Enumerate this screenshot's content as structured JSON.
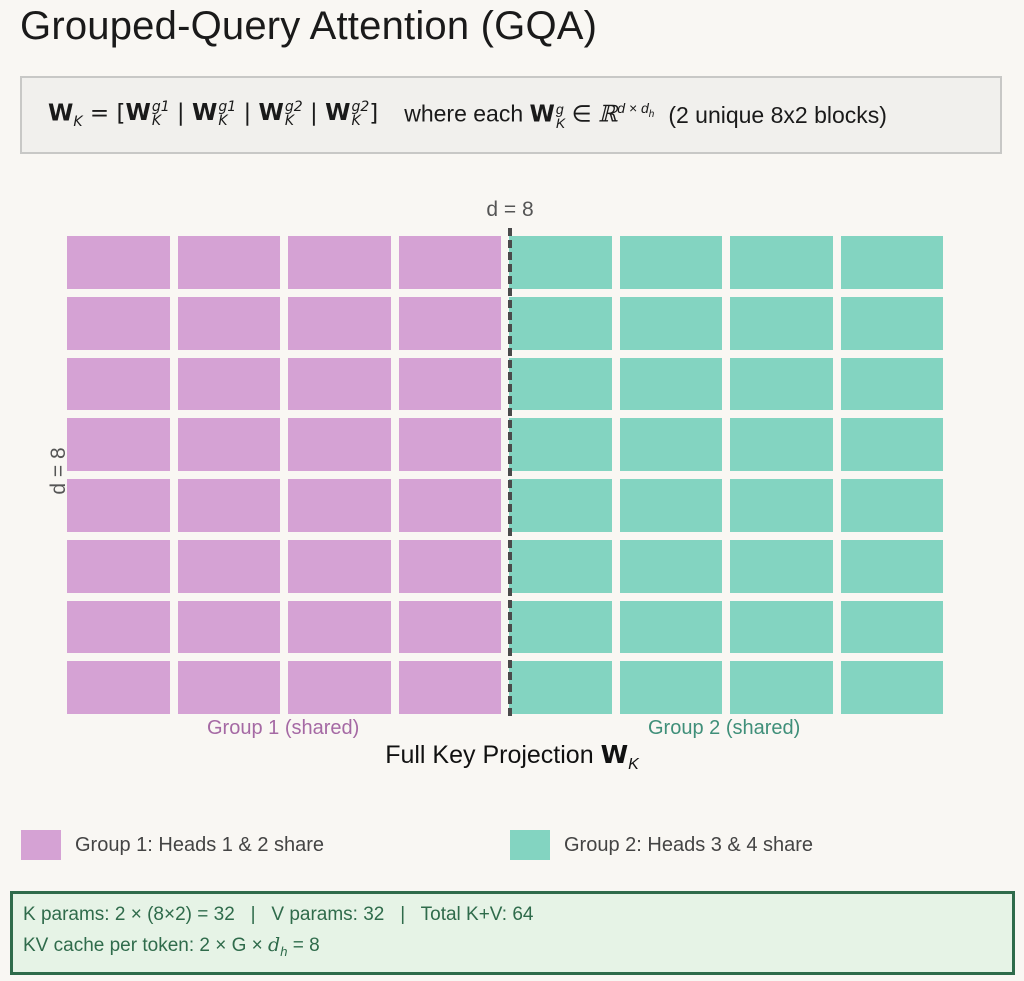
{
  "title": "Grouped-Query Attention (GQA)",
  "formula": {
    "lhs": "W",
    "lhs_sub": "K",
    "equals": " = [",
    "terms": [
      {
        "sup": "g1",
        "sub": "K"
      },
      {
        "sup": "g1",
        "sub": "K"
      },
      {
        "sup": "g2",
        "sub": "K"
      },
      {
        "sup": "g2",
        "sub": "K"
      }
    ],
    "separator": " | ",
    "close": "]",
    "where_text": "where each",
    "where_sup": "g",
    "where_sub": "K",
    "in_symbol": " ∈ ",
    "set_symbol": "ℝ",
    "set_exponent": "d × d",
    "set_exponent_sub": "h",
    "note": "(2 unique 8x2 blocks)"
  },
  "matrix": {
    "rows": 8,
    "cols": 8,
    "top_label": "d = 8",
    "left_label": "d = 8",
    "groups": [
      {
        "label": "Group 1 (shared)",
        "cols": [
          0,
          1,
          2,
          3
        ],
        "color": "#d5a2d4"
      },
      {
        "label": "Group 2 (shared)",
        "cols": [
          4,
          5,
          6,
          7
        ],
        "color": "#83d4c1"
      }
    ]
  },
  "xlabel": {
    "text": "Full Key Projection ",
    "bold": "W",
    "sub": "K"
  },
  "legend": [
    {
      "label": "Group 1: Heads 1 & 2 share",
      "color": "#d5a2d4"
    },
    {
      "label": "Group 2: Heads 3 & 4 share",
      "color": "#83d4c1"
    }
  ],
  "stats": {
    "line1": "K params: 2 × (8×2) = 32   |   V params: 32   |   Total K+V: 64",
    "line2_prefix": "KV cache per token: 2 × G × ",
    "line2_var": "d",
    "line2_sub": "h",
    "line2_suffix": " = 8"
  }
}
